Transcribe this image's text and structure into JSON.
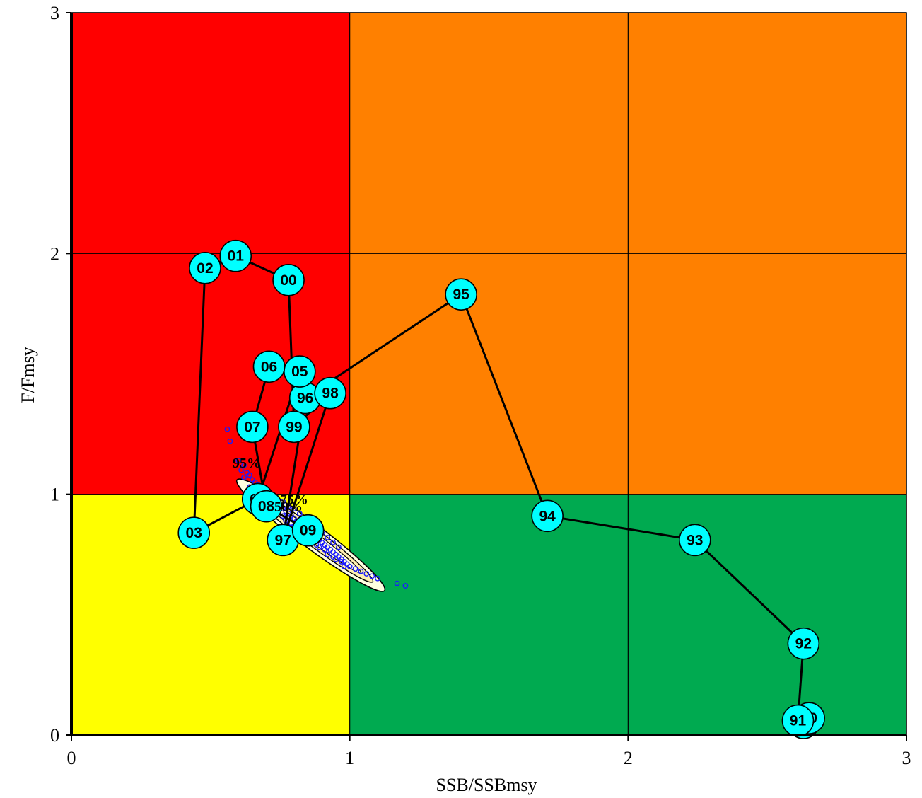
{
  "chart_data": {
    "type": "scatter",
    "title": "",
    "xlabel": "SSB/SSBmsy",
    "ylabel": "F/Fmsy",
    "xlim": [
      0,
      3
    ],
    "ylim": [
      0,
      3
    ],
    "xticks": [
      "0",
      "1",
      "2",
      "3"
    ],
    "yticks": [
      "0",
      "1",
      "2",
      "3"
    ],
    "grid": true,
    "zones": [
      {
        "x0": 0,
        "x1": 1,
        "y0": 1,
        "y1": 3,
        "color": "#ff0000"
      },
      {
        "x0": 1,
        "x1": 3,
        "y0": 1,
        "y1": 3,
        "color": "#ff8000"
      },
      {
        "x0": 0,
        "x1": 1,
        "y0": 0,
        "y1": 1,
        "color": "#ffff00"
      },
      {
        "x0": 1,
        "x1": 3,
        "y0": 0,
        "y1": 1,
        "color": "#00aa50"
      }
    ],
    "trajectory": {
      "color": "#000000",
      "marker_color": "#00ffff",
      "points": [
        {
          "label": "9",
          "x": 2.63,
          "y": 0.05
        },
        {
          "label": "90",
          "x": 2.65,
          "y": 0.07
        },
        {
          "label": "91",
          "x": 2.61,
          "y": 0.06
        },
        {
          "label": "92",
          "x": 2.63,
          "y": 0.38
        },
        {
          "label": "93",
          "x": 2.24,
          "y": 0.81
        },
        {
          "label": "94",
          "x": 1.71,
          "y": 0.91
        },
        {
          "label": "95",
          "x": 1.4,
          "y": 1.83
        },
        {
          "label": "96",
          "x": 0.84,
          "y": 1.4
        },
        {
          "label": "97",
          "x": 0.76,
          "y": 0.81
        },
        {
          "label": "98",
          "x": 0.93,
          "y": 1.42
        },
        {
          "label": "99",
          "x": 0.8,
          "y": 1.28
        },
        {
          "label": "00",
          "x": 0.78,
          "y": 1.89
        },
        {
          "label": "01",
          "x": 0.59,
          "y": 1.99
        },
        {
          "label": "02",
          "x": 0.48,
          "y": 1.94
        },
        {
          "label": "03",
          "x": 0.44,
          "y": 0.84
        },
        {
          "label": "04",
          "x": 0.67,
          "y": 0.98
        },
        {
          "label": "05",
          "x": 0.82,
          "y": 1.51
        },
        {
          "label": "06",
          "x": 0.71,
          "y": 1.53
        },
        {
          "label": "07",
          "x": 0.65,
          "y": 1.28
        },
        {
          "label": "08",
          "x": 0.7,
          "y": 0.95
        },
        {
          "label": "09",
          "x": 0.85,
          "y": 0.85
        }
      ]
    },
    "confidence_labels": [
      {
        "text": "95%",
        "x": 0.63,
        "y": 1.11
      },
      {
        "text": "75%",
        "x": 0.8,
        "y": 0.96
      },
      {
        "text": "50%",
        "x": 0.78,
        "y": 0.93
      }
    ],
    "confidence_region": {
      "outer_fill": "#ffffe0",
      "inner_fill": "#fff0b0",
      "outline": "#000000",
      "center": [
        0.86,
        0.83
      ],
      "dir": [
        0.53,
        -0.46
      ]
    },
    "bootstrap": {
      "color": "#1a1aff",
      "points": [
        [
          0.56,
          1.27
        ],
        [
          0.57,
          1.22
        ],
        [
          0.6,
          1.14
        ],
        [
          0.62,
          1.12
        ],
        [
          0.61,
          1.1
        ],
        [
          0.63,
          1.09
        ],
        [
          0.62,
          1.07
        ],
        [
          0.64,
          1.08
        ],
        [
          0.65,
          1.06
        ],
        [
          0.66,
          1.05
        ],
        [
          0.64,
          1.03
        ],
        [
          0.67,
          1.04
        ],
        [
          0.68,
          1.02
        ],
        [
          0.69,
          1.01
        ],
        [
          0.66,
          1.0
        ],
        [
          0.7,
          1.0
        ],
        [
          0.71,
          0.99
        ],
        [
          0.72,
          0.98
        ],
        [
          0.73,
          0.97
        ],
        [
          0.74,
          0.96
        ],
        [
          0.72,
          0.95
        ],
        [
          0.75,
          0.95
        ],
        [
          0.76,
          0.94
        ],
        [
          0.77,
          0.93
        ],
        [
          0.78,
          0.92
        ],
        [
          0.79,
          0.91
        ],
        [
          0.8,
          0.9
        ],
        [
          0.81,
          0.89
        ],
        [
          0.82,
          0.88
        ],
        [
          0.83,
          0.87
        ],
        [
          0.84,
          0.86
        ],
        [
          0.85,
          0.85
        ],
        [
          0.86,
          0.84
        ],
        [
          0.87,
          0.83
        ],
        [
          0.88,
          0.82
        ],
        [
          0.89,
          0.81
        ],
        [
          0.9,
          0.8
        ],
        [
          0.91,
          0.79
        ],
        [
          0.92,
          0.78
        ],
        [
          0.93,
          0.77
        ],
        [
          0.94,
          0.76
        ],
        [
          0.95,
          0.75
        ],
        [
          0.96,
          0.74
        ],
        [
          0.97,
          0.73
        ],
        [
          0.98,
          0.72
        ],
        [
          0.99,
          0.71
        ],
        [
          1.0,
          0.7
        ],
        [
          1.02,
          0.69
        ],
        [
          1.04,
          0.68
        ],
        [
          1.06,
          0.67
        ],
        [
          1.08,
          0.66
        ],
        [
          1.1,
          0.65
        ],
        [
          1.17,
          0.63
        ],
        [
          1.2,
          0.62
        ],
        [
          0.74,
          0.98
        ],
        [
          0.76,
          0.97
        ],
        [
          0.78,
          0.95
        ],
        [
          0.8,
          0.94
        ],
        [
          0.82,
          0.92
        ],
        [
          0.84,
          0.9
        ],
        [
          0.86,
          0.88
        ],
        [
          0.88,
          0.86
        ],
        [
          0.9,
          0.84
        ],
        [
          0.92,
          0.82
        ],
        [
          0.94,
          0.8
        ],
        [
          0.96,
          0.78
        ],
        [
          0.7,
          0.96
        ],
        [
          0.73,
          0.93
        ],
        [
          0.76,
          0.91
        ],
        [
          0.79,
          0.88
        ],
        [
          0.82,
          0.85
        ],
        [
          0.85,
          0.82
        ],
        [
          0.88,
          0.79
        ],
        [
          0.91,
          0.77
        ],
        [
          0.94,
          0.74
        ],
        [
          0.97,
          0.72
        ],
        [
          0.67,
          1.0
        ],
        [
          0.69,
          0.97
        ],
        [
          0.71,
          0.94
        ],
        [
          0.74,
          0.92
        ],
        [
          0.77,
          0.89
        ],
        [
          0.8,
          0.87
        ],
        [
          0.83,
          0.84
        ],
        [
          0.86,
          0.81
        ],
        [
          0.89,
          0.78
        ],
        [
          0.92,
          0.75
        ],
        [
          0.95,
          0.73
        ],
        [
          0.98,
          0.7
        ]
      ]
    }
  }
}
